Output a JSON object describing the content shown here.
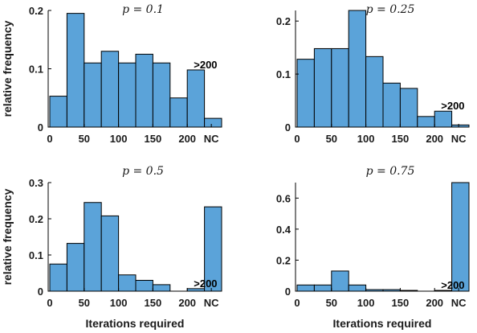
{
  "bar_color": "#5ba3d9",
  "chart_data": [
    {
      "type": "bar",
      "title": "p = 0.1",
      "ylabel": "relative frequency",
      "xlabel": "",
      "ylim": [
        0,
        0.2
      ],
      "yticks": [
        "0",
        "0.1",
        "0.2"
      ],
      "xticks": [
        "0",
        "50",
        "100",
        "150",
        "200",
        "NC"
      ],
      "values": [
        0.053,
        0.195,
        0.11,
        0.13,
        0.11,
        0.125,
        0.11,
        0.05,
        0.098,
        0.015
      ],
      "annotation": ">200"
    },
    {
      "type": "bar",
      "title": "p = 0.25",
      "ylabel": "",
      "xlabel": "",
      "ylim": [
        0,
        0.22
      ],
      "yticks": [
        "0",
        "0.1",
        "0.2"
      ],
      "xticks": [
        "0",
        "50",
        "100",
        "150",
        "200",
        "NC"
      ],
      "values": [
        0.128,
        0.148,
        0.148,
        0.22,
        0.133,
        0.083,
        0.073,
        0.02,
        0.03,
        0.004
      ],
      "annotation": ">200"
    },
    {
      "type": "bar",
      "title": "p = 0.5",
      "ylabel": "relative frequency",
      "xlabel": "Iterations required",
      "ylim": [
        0,
        0.3
      ],
      "yticks": [
        "0",
        "0.1",
        "0.2",
        "0.3"
      ],
      "xticks": [
        "0",
        "50",
        "100",
        "150",
        "200",
        "NC"
      ],
      "values": [
        0.075,
        0.132,
        0.245,
        0.208,
        0.045,
        0.03,
        0.018,
        0.0,
        0.007,
        0.233
      ],
      "annotation": ">200"
    },
    {
      "type": "bar",
      "title": "p = 0.75",
      "ylabel": "",
      "xlabel": "Iterations required",
      "ylim": [
        0,
        0.7
      ],
      "yticks": [
        "0",
        "0.2",
        "0.4",
        "0.6"
      ],
      "xticks": [
        "0",
        "50",
        "100",
        "150",
        "200",
        "NC"
      ],
      "values": [
        0.04,
        0.04,
        0.13,
        0.04,
        0.01,
        0.01,
        0.005,
        0.0,
        0.005,
        0.7
      ],
      "annotation": ">200"
    }
  ]
}
